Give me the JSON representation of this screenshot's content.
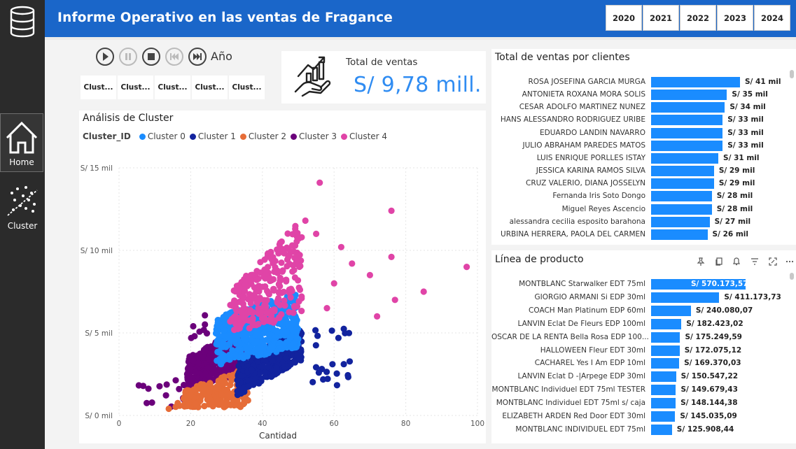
{
  "header": {
    "title": "Informe Operativo en las ventas de Fragance",
    "years": [
      "2020",
      "2021",
      "2022",
      "2023",
      "2024"
    ]
  },
  "sidebar": {
    "items": [
      {
        "label": "Home",
        "icon": "home-icon"
      },
      {
        "label": "Cluster",
        "icon": "scatter-icon"
      }
    ]
  },
  "playback": {
    "label": "Año"
  },
  "cluster_slicer": [
    "Clust...",
    "Clust...",
    "Clust...",
    "Clust...",
    "Clust..."
  ],
  "kpi": {
    "title": "Total de ventas",
    "value": "S/ 9,78 mill."
  },
  "colors": {
    "accent": "#1a8cff",
    "header": "#1a66c9",
    "cluster0": "#1a8cff",
    "cluster1": "#12239e",
    "cluster2": "#e66c37",
    "cluster3": "#6b007b",
    "cluster4": "#e044a7"
  },
  "scatter": {
    "title": "Análisis de Cluster",
    "legend_title": "Cluster_ID",
    "legend": [
      "Cluster 0",
      "Cluster 1",
      "Cluster 2",
      "Cluster 3",
      "Cluster 4"
    ],
    "xlabel": "Cantidad",
    "x_ticks": [
      "0",
      "20",
      "40",
      "60",
      "80",
      "100"
    ],
    "y_ticks": [
      "S/ 0 mil",
      "S/ 5 mil",
      "S/ 10 mil",
      "S/ 15 mil"
    ]
  },
  "clients_chart": {
    "title": "Total de ventas por clientes",
    "rows": [
      {
        "label": "ROSA JOSEFINA GARCIA MURGA",
        "value": 41,
        "text": "S/ 41 mil"
      },
      {
        "label": "ANTONIETA ROXANA MORA SOLIS",
        "value": 35,
        "text": "S/ 35 mil"
      },
      {
        "label": "CESAR ADOLFO MARTINEZ NUNEZ",
        "value": 34,
        "text": "S/ 34 mil"
      },
      {
        "label": "HANS ALESSANDRO RODRIGUEZ URIBE",
        "value": 33,
        "text": "S/ 33 mil"
      },
      {
        "label": "EDUARDO LANDIN NAVARRO",
        "value": 33,
        "text": "S/ 33 mil"
      },
      {
        "label": "JULIO ABRAHAM PAREDES MATOS",
        "value": 33,
        "text": "S/ 33 mil"
      },
      {
        "label": "LUIS ENRIQUE PORLLES ISTAY",
        "value": 31,
        "text": "S/ 31 mil"
      },
      {
        "label": "JESSICA KARINA RAMOS SILVA",
        "value": 29,
        "text": "S/ 29 mil"
      },
      {
        "label": "CRUZ VALERIO, DIANA JOSSELYN",
        "value": 29,
        "text": "S/ 29 mil"
      },
      {
        "label": "Fernanda Iris Soto Dongo",
        "value": 28,
        "text": "S/ 28 mil"
      },
      {
        "label": "Miguel Reyes Ascencio",
        "value": 28,
        "text": "S/ 28 mil"
      },
      {
        "label": "alessandra cecilia esposito barahona",
        "value": 27,
        "text": "S/ 27 mil"
      },
      {
        "label": "URBINA HERRERA, PAOLA DEL CARMEN",
        "value": 26,
        "text": "S/ 26 mil"
      }
    ]
  },
  "products_chart": {
    "title": "Línea de producto",
    "rows": [
      {
        "label": "MONTBLANC Starwalker EDT 75ml",
        "value": 570173.57,
        "text": "S/ 570.173,57"
      },
      {
        "label": "GIORGIO ARMANI Si EDP 30ml",
        "value": 411173.73,
        "text": "S/ 411.173,73"
      },
      {
        "label": "COACH Man Platinum EDP 60ml",
        "value": 240080.07,
        "text": "S/ 240.080,07"
      },
      {
        "label": "LANVIN Eclat De Fleurs EDP 100ml",
        "value": 182423.02,
        "text": "S/ 182.423,02"
      },
      {
        "label": "OSCAR DE LA RENTA Bella Rosa EDP 100...",
        "value": 175249.59,
        "text": "S/ 175.249,59"
      },
      {
        "label": "HALLOWEEN Fleur EDT 30ml",
        "value": 172075.12,
        "text": "S/ 172.075,12"
      },
      {
        "label": "CACHAREL Yes I Am EDP 10ml",
        "value": 169370.03,
        "text": "S/ 169.370,03"
      },
      {
        "label": "LANVIN Eclat D -|Arpege EDP 30ml",
        "value": 150547.22,
        "text": "S/ 150.547,22"
      },
      {
        "label": "MONTBLANC Individuel EDT 75ml TESTER",
        "value": 149679.43,
        "text": "S/ 149.679,43"
      },
      {
        "label": "MONTBLANC Individuel EDT 75ml s/ caja",
        "value": 148144.38,
        "text": "S/ 148.144,38"
      },
      {
        "label": "ELIZABETH ARDEN Red Door EDT 30ml",
        "value": 145035.09,
        "text": "S/ 145.035,09"
      },
      {
        "label": "MONTBLANC INDIVIDUEL EDT 75ml",
        "value": 125908.44,
        "text": "S/ 125.908,44"
      }
    ]
  }
}
